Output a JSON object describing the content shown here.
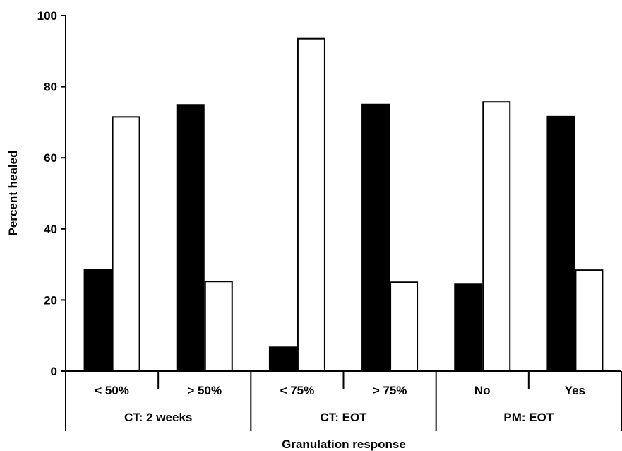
{
  "chart_data": {
    "type": "bar",
    "title": "",
    "xlabel": "Granulation response",
    "ylabel": "Percent healed",
    "ylim": [
      0,
      100
    ],
    "yticks": [
      0,
      20,
      40,
      60,
      80,
      100
    ],
    "grid": false,
    "legend": "none",
    "groups": [
      {
        "label": "CT: 2 weeks",
        "categories": [
          "< 50%",
          "> 50%"
        ]
      },
      {
        "label": "CT: EOT",
        "categories": [
          "< 75%",
          "> 75%"
        ]
      },
      {
        "label": "PM: EOT",
        "categories": [
          "No",
          "Yes"
        ]
      }
    ],
    "categories": [
      "< 50%",
      "> 50%",
      "< 75%",
      "> 75%",
      "No",
      "Yes"
    ],
    "series": [
      {
        "color": "#000000",
        "values": [
          28.5,
          74.9,
          6.7,
          75.0,
          24.4,
          71.6
        ]
      },
      {
        "color": "#ffffff",
        "values": [
          71.5,
          25.2,
          93.5,
          25.0,
          75.7,
          28.4
        ]
      }
    ]
  }
}
